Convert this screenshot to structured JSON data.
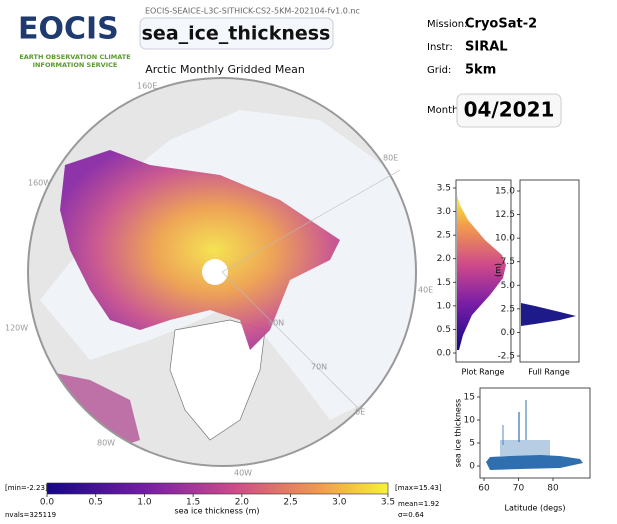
{
  "logo": {
    "title": "EOCIS",
    "subtitle_lines": [
      "EARTH OBSERVATION CLIMATE",
      "INFORMATION SERVICE"
    ]
  },
  "filename": "EOCIS-SEAICE-L3C-SITHICK-CS2-5KM-202104-fv1.0.nc",
  "variable": "sea_ice_thickness",
  "map": {
    "title": "Arctic Monthly Gridded Mean",
    "labels": [
      "160E",
      "80E",
      "160W",
      "40E",
      "120W",
      "80N",
      "70N",
      "0E",
      "80W",
      "40W"
    ]
  },
  "info": {
    "mission": {
      "label": "Mission:",
      "value": "CryoSat-2"
    },
    "instrument": {
      "label": "Instr:",
      "value": "SIRAL"
    },
    "grid": {
      "label": "Grid:",
      "value": "5km"
    },
    "month": {
      "label": "Month:",
      "value": "04/2021"
    }
  },
  "plot_range": {
    "yticks": [
      "3.5",
      "3.0",
      "2.5",
      "2.0",
      "1.5",
      "1.0",
      "0.5",
      "0.0"
    ],
    "xlabel": "Plot Range"
  },
  "full_range": {
    "yticks": [
      "15.0",
      "12.5",
      "10.0",
      "7.5",
      "5.0",
      "2.5",
      "0.0",
      "-2.5"
    ],
    "ylabel": "(m)",
    "xlabel": "Full Range"
  },
  "scatter": {
    "yticks": [
      "15",
      "10",
      "5",
      "0"
    ],
    "xticks": [
      "60",
      "70",
      "80"
    ],
    "xlabel": "Latitude (degs)",
    "ylabel": "sea ice thickness"
  },
  "colorbar": {
    "ticks": [
      "0.0",
      "0.5",
      "1.0",
      "1.5",
      "2.0",
      "2.5",
      "3.0",
      "3.5"
    ],
    "label": "sea ice thickness (m)",
    "min": "[min=-2.23]",
    "max": "[max=15.43]",
    "mean": "mean=1.92",
    "sigma": "σ=0.64",
    "nvals": "nvals=325119"
  }
}
